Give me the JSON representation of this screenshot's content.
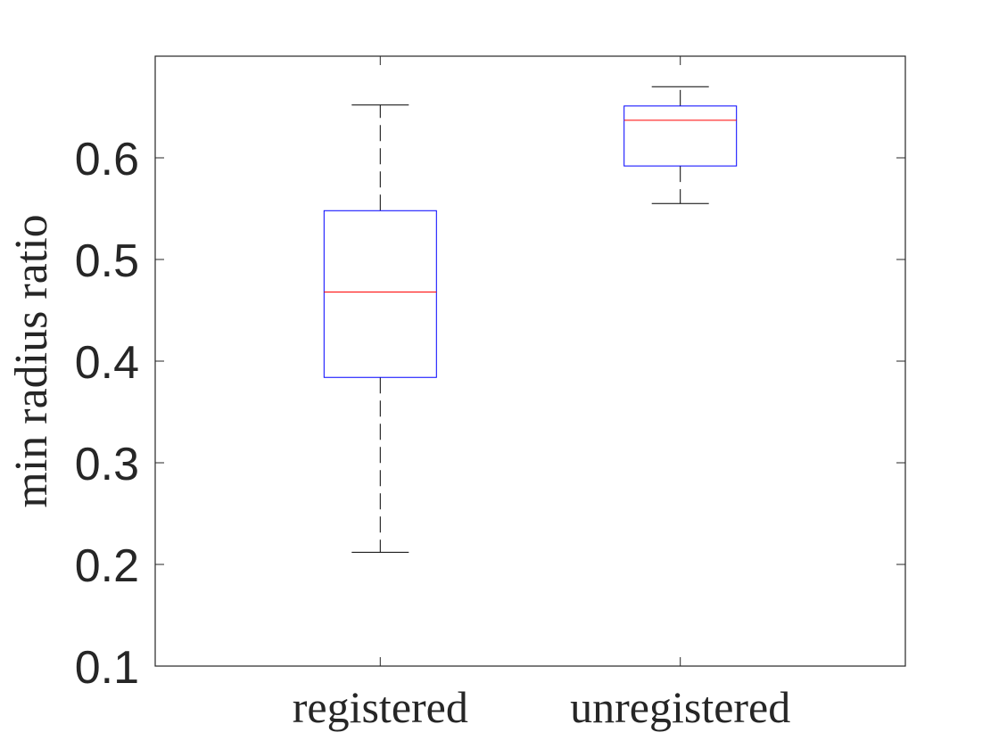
{
  "chart_data": {
    "type": "box",
    "categories": [
      "registered",
      "unregistered"
    ],
    "boxes": [
      {
        "category": "registered",
        "whisker_low": 0.212,
        "q1": 0.384,
        "median": 0.468,
        "q3": 0.548,
        "whisker_high": 0.652
      },
      {
        "category": "unregistered",
        "whisker_low": 0.555,
        "q1": 0.592,
        "median": 0.637,
        "q3": 0.651,
        "whisker_high": 0.67
      }
    ],
    "ylabel": "min radius ratio",
    "xlabel": "",
    "ylim": [
      0.1,
      0.7
    ],
    "yticks": [
      "0.1",
      "0.2",
      "0.3",
      "0.4",
      "0.5",
      "0.6"
    ],
    "ytick_values": [
      0.1,
      0.2,
      0.3,
      0.4,
      0.5,
      0.6
    ],
    "grid": false,
    "colors": {
      "box": "#0000ff",
      "median": "#ff0000",
      "whisker": "#000000",
      "axes": "#262626"
    }
  }
}
